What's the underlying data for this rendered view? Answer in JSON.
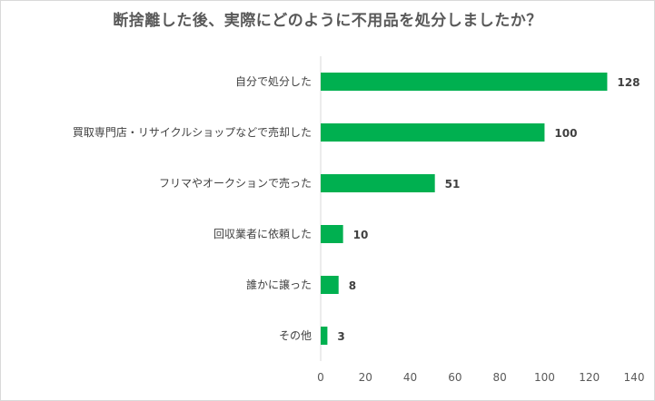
{
  "chart_data": {
    "type": "bar",
    "orientation": "horizontal",
    "title": "断捨離した後、実際にどのように不用品を処分しましたか？",
    "categories": [
      "自分で処分した",
      "買取専門店・リサイクルショップなどで売却した",
      "フリマやオークションで売った",
      "回収業者に依頼した",
      "誰かに譲った",
      "その他"
    ],
    "values": [
      128,
      100,
      51,
      10,
      8,
      3
    ],
    "xlim": [
      0,
      140
    ],
    "xticks": [
      "0",
      "20",
      "40",
      "60",
      "80",
      "100",
      "120",
      "140"
    ],
    "grid": false,
    "bar_color": "#00b050",
    "xlabel": "",
    "ylabel": ""
  }
}
